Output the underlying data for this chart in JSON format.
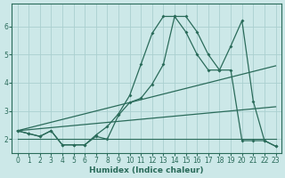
{
  "xlabel": "Humidex (Indice chaleur)",
  "bg_color": "#cce8e8",
  "grid_color": "#aacfcf",
  "line_color": "#2a6b5a",
  "xlim": [
    -0.5,
    23.5
  ],
  "ylim": [
    1.5,
    6.8
  ],
  "yticks": [
    2,
    3,
    4,
    5,
    6
  ],
  "xticks": [
    0,
    1,
    2,
    3,
    4,
    5,
    6,
    7,
    8,
    9,
    10,
    11,
    12,
    13,
    14,
    15,
    16,
    17,
    18,
    19,
    20,
    21,
    22,
    23
  ],
  "line1_x": [
    0,
    1,
    2,
    3,
    4,
    5,
    6,
    7,
    8,
    9,
    10,
    11,
    12,
    13,
    14,
    15,
    16,
    17,
    18,
    19,
    20,
    21,
    22,
    23
  ],
  "line1_y": [
    2.3,
    2.2,
    2.1,
    2.3,
    1.8,
    1.8,
    1.8,
    2.15,
    2.45,
    2.9,
    3.55,
    4.65,
    5.75,
    6.35,
    6.35,
    5.8,
    5.0,
    4.45,
    4.45,
    5.3,
    6.2,
    3.35,
    1.95,
    1.75
  ],
  "line2_x": [
    0,
    1,
    2,
    3,
    4,
    5,
    6,
    7,
    8,
    9,
    10,
    11,
    12,
    13,
    14,
    15,
    16,
    17,
    18,
    19,
    20,
    21,
    22,
    23
  ],
  "line2_y": [
    2.3,
    2.2,
    2.1,
    2.3,
    1.8,
    1.8,
    1.8,
    2.1,
    2.0,
    2.85,
    3.3,
    3.45,
    3.95,
    4.65,
    6.35,
    6.35,
    5.8,
    5.0,
    4.45,
    4.45,
    1.95,
    1.95,
    1.95,
    1.75
  ],
  "line3_x": [
    0,
    23
  ],
  "line3_y": [
    2.3,
    4.6
  ],
  "line4_x": [
    0,
    23
  ],
  "line4_y": [
    2.3,
    3.15
  ],
  "line5_x": [
    0,
    23
  ],
  "line5_y": [
    2.0,
    2.0
  ]
}
